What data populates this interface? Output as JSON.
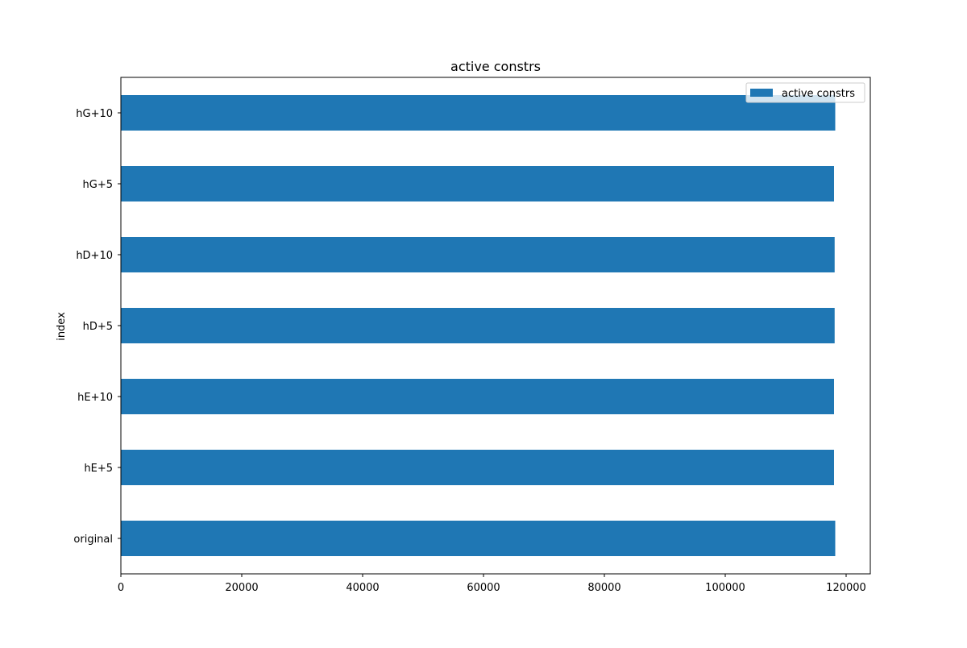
{
  "chart_data": {
    "type": "bar",
    "orientation": "horizontal",
    "title": "active constrs",
    "xlabel": "",
    "ylabel": "index",
    "categories": [
      "original",
      "hE+5",
      "hE+10",
      "hD+5",
      "hD+10",
      "hG+5",
      "hG+10"
    ],
    "series": [
      {
        "name": "active constrs",
        "color": "#1f77b4",
        "values": [
          118200,
          118000,
          118000,
          118100,
          118100,
          118000,
          118200
        ]
      }
    ],
    "xlim": [
      0,
      124000
    ],
    "xticks": [
      0,
      20000,
      40000,
      60000,
      80000,
      100000,
      120000
    ],
    "grid": false,
    "legend_position": "top-right"
  }
}
